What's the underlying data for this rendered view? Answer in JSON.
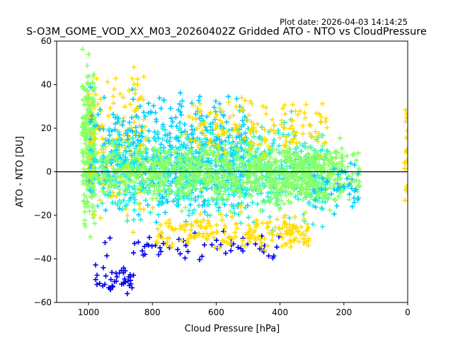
{
  "plot_date": "Plot date: 2026-04-03 14:14:25",
  "chart_data": {
    "type": "scatter",
    "title": "S-O3M_GOME_VOD_XX_M03_20260402Z Gridded ATO - NTO vs CloudPressure",
    "xlabel": "Cloud Pressure [hPa]",
    "ylabel": "ATO - NTO [DU]",
    "xlim": [
      1100,
      0
    ],
    "ylim": [
      -60,
      60
    ],
    "x_reversed": true,
    "grid": false,
    "xticks": [
      1000,
      800,
      600,
      400,
      200,
      0
    ],
    "xtick_labels": [
      "1000",
      "800",
      "600",
      "400",
      "200",
      "0"
    ],
    "yticks": [
      -60,
      -40,
      -20,
      0,
      20,
      40,
      60
    ],
    "ytick_labels": [
      "−60",
      "−40",
      "−20",
      "0",
      "20",
      "40",
      "60"
    ],
    "reference_line_y": 0,
    "marker": "plus",
    "series_colors": [
      "#0000ee",
      "#00ccff",
      "#22eedd",
      "#88ff66",
      "#ffdd00"
    ],
    "regions": [
      {
        "x_range": [
          1020,
          980
        ],
        "y_range": [
          -35,
          60
        ],
        "color": "#88ff66",
        "density": 300
      },
      {
        "x_range": [
          1000,
          820
        ],
        "y_range": [
          -35,
          58
        ],
        "color": "#ffdd00",
        "density": 180
      },
      {
        "x_range": [
          1000,
          500
        ],
        "y_range": [
          -30,
          45
        ],
        "color": "#00ccff",
        "density": 500
      },
      {
        "x_range": [
          1000,
          250
        ],
        "y_range": [
          -30,
          30
        ],
        "color": "#22eedd",
        "density": 700
      },
      {
        "x_range": [
          1000,
          200
        ],
        "y_range": [
          -20,
          20
        ],
        "color": "#88ff66",
        "density": 900
      },
      {
        "x_range": [
          950,
          400
        ],
        "y_range": [
          -45,
          -25
        ],
        "color": "#0000ee",
        "density": 60
      },
      {
        "x_range": [
          980,
          850
        ],
        "y_range": [
          -58,
          -40
        ],
        "color": "#0000ee",
        "density": 40
      },
      {
        "x_range": [
          800,
          300
        ],
        "y_range": [
          -40,
          -15
        ],
        "color": "#ffdd00",
        "density": 200
      },
      {
        "x_range": [
          700,
          250
        ],
        "y_range": [
          0,
          40
        ],
        "color": "#ffdd00",
        "density": 150
      },
      {
        "x_range": [
          500,
          150
        ],
        "y_range": [
          -20,
          15
        ],
        "color": "#88ff66",
        "density": 120
      },
      {
        "x_range": [
          300,
          150
        ],
        "y_range": [
          -25,
          10
        ],
        "color": "#00ccff",
        "density": 40
      },
      {
        "x_range": [
          10,
          0
        ],
        "y_range": [
          -25,
          40
        ],
        "color": "#ffdd00",
        "density": 20
      }
    ]
  }
}
